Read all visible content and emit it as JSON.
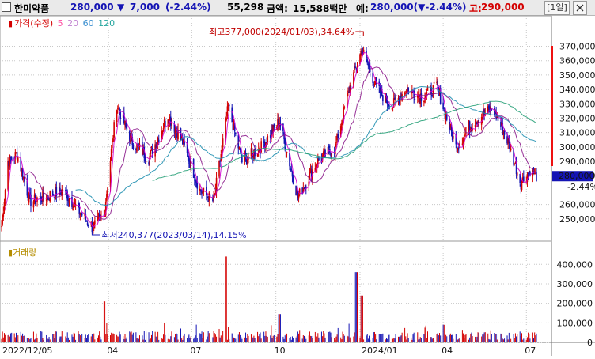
{
  "header": {
    "stock_name": "한미약품",
    "price": "280,000",
    "change_arrow": "▼",
    "change": "7,000",
    "change_pct": "(-2.44%)",
    "volume": "55,298",
    "amount_label": "금액:",
    "amount": "15,588백만",
    "low_label": "예:",
    "low_value": "280,000(▼-2.44%)",
    "high_label": "고:",
    "high_value": "290,000",
    "period_button": "[1일]"
  },
  "legend": {
    "price_label": "가격(수정)",
    "ma5": "5",
    "ma20": "20",
    "ma60": "60",
    "ma120": "120"
  },
  "volume_legend": "거래량",
  "colors": {
    "up": "#d40000",
    "down": "#1414b4",
    "ma5": "#d000d0",
    "ma20": "#8b1a8b",
    "ma60": "#1f8fb0",
    "ma120": "#2aa27a",
    "volume_label": "#b58d00"
  },
  "annotations": {
    "high": "최고377,000(2024/01/03),34.64%",
    "low": "최저240,377(2023/03/14),14.15%"
  },
  "chart_data": {
    "type": "candlestick",
    "price_axis": {
      "ticks": [
        "370,000",
        "360,000",
        "350,000",
        "340,000",
        "330,000",
        "320,000",
        "310,000",
        "300,000",
        "290,000",
        "280,000",
        "260,000",
        "250,000"
      ],
      "current_label": "280,000",
      "current_change": "-2.44%",
      "ylim": [
        240000,
        378000
      ]
    },
    "volume_axis": {
      "ticks": [
        "400,000",
        "300,000",
        "200,000",
        "100,000",
        "0"
      ],
      "ylim": [
        0,
        470000
      ]
    },
    "x_ticks": [
      "2022/12/05",
      "04",
      "07",
      "10",
      "2024/01",
      "04",
      "07"
    ],
    "price_anchors": [
      {
        "date": "2022-12-05",
        "close": 245000
      },
      {
        "date": "2022-12-12",
        "close": 290000
      },
      {
        "date": "2022-12-22",
        "close": 295000
      },
      {
        "date": "2023-01-05",
        "close": 262000
      },
      {
        "date": "2023-01-20",
        "close": 265000
      },
      {
        "date": "2023-02-10",
        "close": 270000
      },
      {
        "date": "2023-03-14",
        "close": 244000
      },
      {
        "date": "2023-03-27",
        "close": 252000
      },
      {
        "date": "2023-04-10",
        "close": 330000
      },
      {
        "date": "2023-04-25",
        "close": 305000
      },
      {
        "date": "2023-05-15",
        "close": 292000
      },
      {
        "date": "2023-06-05",
        "close": 322000
      },
      {
        "date": "2023-06-20",
        "close": 305000
      },
      {
        "date": "2023-07-10",
        "close": 270000
      },
      {
        "date": "2023-07-25",
        "close": 262000
      },
      {
        "date": "2023-08-10",
        "close": 328000
      },
      {
        "date": "2023-08-25",
        "close": 290000
      },
      {
        "date": "2023-09-15",
        "close": 300000
      },
      {
        "date": "2023-10-05",
        "close": 318000
      },
      {
        "date": "2023-10-25",
        "close": 265000
      },
      {
        "date": "2023-11-15",
        "close": 290000
      },
      {
        "date": "2023-12-05",
        "close": 300000
      },
      {
        "date": "2023-12-20",
        "close": 340000
      },
      {
        "date": "2024-01-03",
        "close": 368000
      },
      {
        "date": "2024-01-20",
        "close": 340000
      },
      {
        "date": "2024-02-05",
        "close": 328000
      },
      {
        "date": "2024-02-20",
        "close": 340000
      },
      {
        "date": "2024-03-10",
        "close": 335000
      },
      {
        "date": "2024-03-25",
        "close": 342000
      },
      {
        "date": "2024-04-15",
        "close": 300000
      },
      {
        "date": "2024-05-05",
        "close": 318000
      },
      {
        "date": "2024-05-25",
        "close": 327000
      },
      {
        "date": "2024-06-10",
        "close": 305000
      },
      {
        "date": "2024-06-25",
        "close": 275000
      },
      {
        "date": "2024-07-05",
        "close": 284000
      },
      {
        "date": "2024-07-12",
        "close": 280000
      }
    ],
    "volume_spikes": [
      {
        "date": "2023-03-27",
        "value": 210000
      },
      {
        "date": "2023-08-07",
        "value": 440000
      },
      {
        "date": "2023-12-28",
        "value": 360000
      },
      {
        "date": "2024-01-03",
        "value": 240000
      },
      {
        "date": "2023-10-05",
        "value": 145000
      },
      {
        "date": "2024-04-01",
        "value": 90000
      }
    ],
    "grid": true
  }
}
